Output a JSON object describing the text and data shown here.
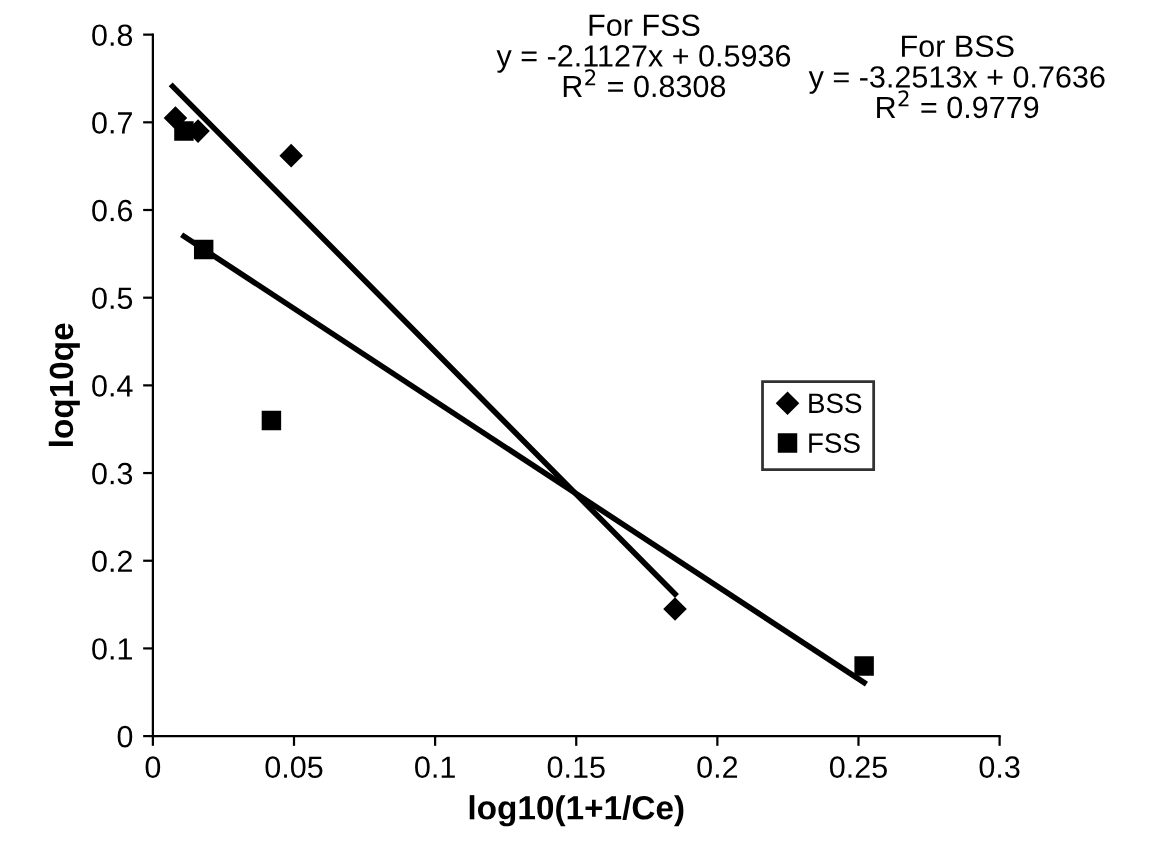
{
  "chart_data": {
    "type": "scatter",
    "xlabel": "log10(1+1/Ce)",
    "ylabel": "loq10qe",
    "xlim": [
      0,
      0.3
    ],
    "xticks": [
      0,
      0.05,
      0.1,
      0.15,
      0.2,
      0.25,
      0.3
    ],
    "ylim": [
      0,
      0.8
    ],
    "yticks": [
      0,
      0.1,
      0.2,
      0.3,
      0.4,
      0.5,
      0.6,
      0.7,
      0.8
    ],
    "grid": false,
    "legend": "right",
    "series": [
      {
        "name": "BSS",
        "color": "#000000",
        "marker": "diamond",
        "x": [
          0.008,
          0.012,
          0.016,
          0.049,
          0.185
        ],
        "values": [
          0.705,
          null,
          0.69,
          0.662,
          0.145
        ]
      },
      {
        "name": "FSS",
        "color": "#000000",
        "marker": "square",
        "x": [
          0.011,
          0.018,
          0.042,
          0.252
        ],
        "values": [
          0.69,
          0.555,
          0.36,
          0.08
        ]
      },
      {
        "type": "line",
        "color": "#000000",
        "marker": "none",
        "x": [
          0.007,
          0.185
        ],
        "values": [
          0.741,
          0.162
        ]
      },
      {
        "type": "line",
        "color": "#000000",
        "marker": "none",
        "x": [
          0.011,
          0.252
        ],
        "values": [
          0.57,
          0.061
        ]
      }
    ],
    "annotations": [
      "For FSS\ny = -2.1127x + 0.5936\nR$^{2}$ = 0.8308",
      "For BSS\ny = -3.2513x + 0.7636\nR$^{2}$ = 0.9779"
    ]
  }
}
